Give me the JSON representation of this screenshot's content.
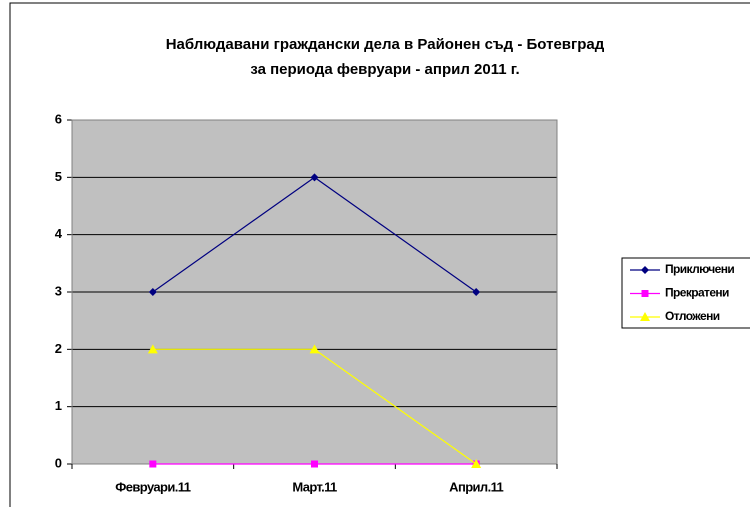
{
  "chart_data": {
    "type": "line",
    "title": [
      "Наблюдавани граждански дела в Районен съд - Ботевград",
      "за периода  февруари - април 2011 г."
    ],
    "categories": [
      "Февруари.11",
      "Март.11",
      "Април.11"
    ],
    "series": [
      {
        "name": "Приключени",
        "color": "#000080",
        "marker": "diamond",
        "values": [
          3,
          5,
          3
        ]
      },
      {
        "name": "Прекратени",
        "color": "#ff00ff",
        "marker": "square",
        "values": [
          0,
          0,
          0
        ]
      },
      {
        "name": "Отложени",
        "color": "#ffff00",
        "marker": "triangle",
        "values": [
          2,
          2,
          0
        ]
      }
    ],
    "ylim": [
      0,
      6
    ],
    "yticks": [
      0,
      1,
      2,
      3,
      4,
      5,
      6
    ],
    "grid": true,
    "legend": "right"
  }
}
